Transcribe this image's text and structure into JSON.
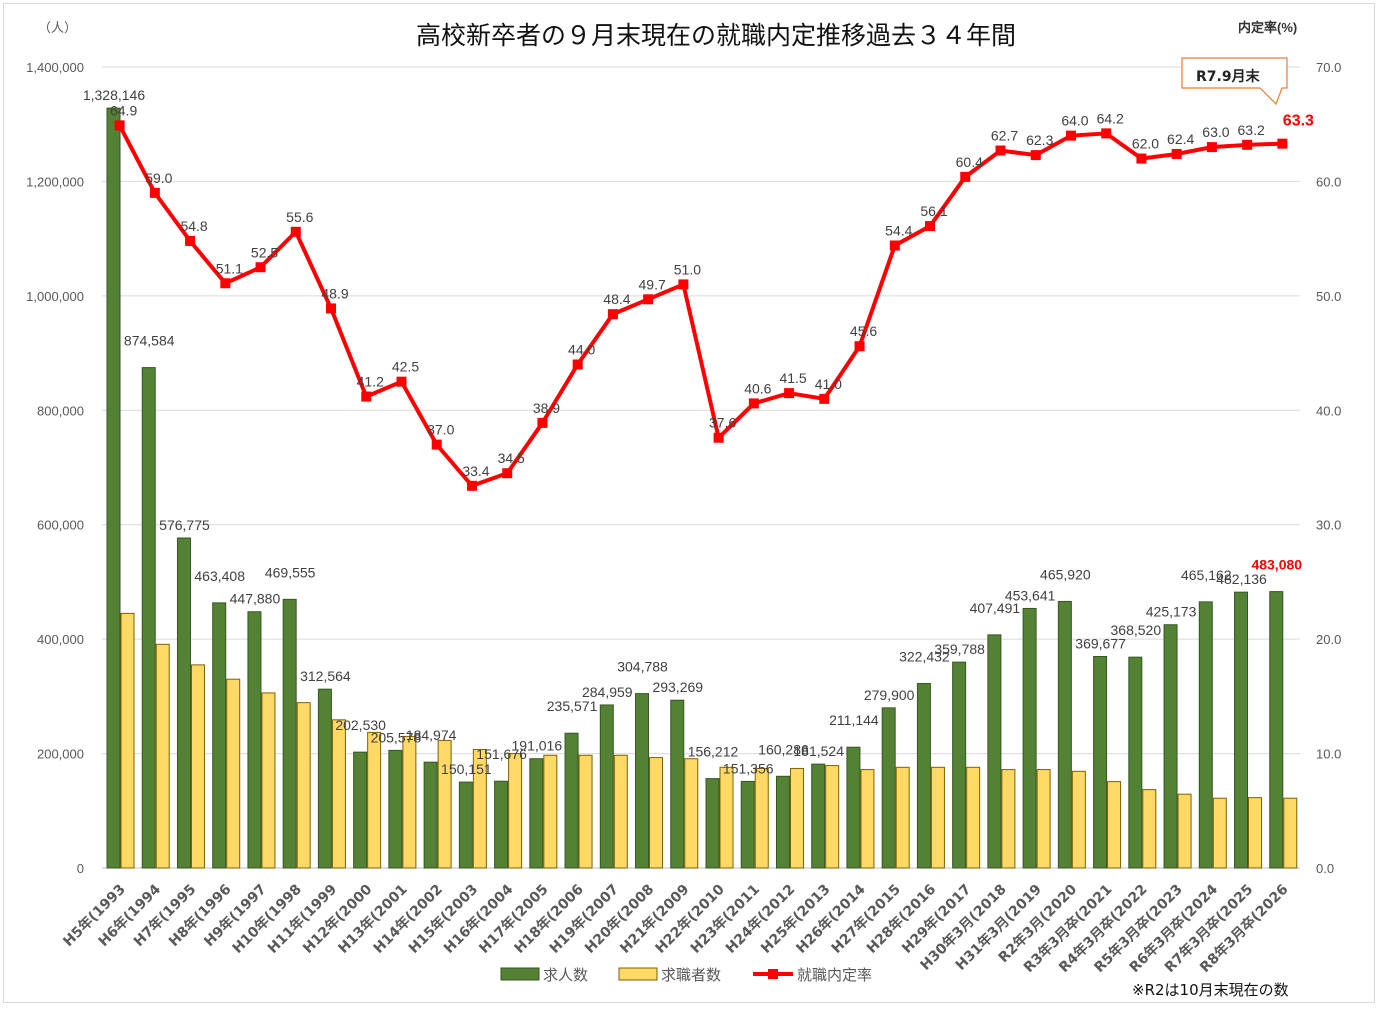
{
  "chart_data": {
    "type": "bar",
    "title": "高校新卒者の９月末現在の就職内定推移過去３４年間",
    "ylabel_left": "（人）",
    "ylabel_right": "内定率(%)",
    "ylim_left": [
      0,
      1400000
    ],
    "ylim_right": [
      0,
      70
    ],
    "left_ticks": [
      "0",
      "200,000",
      "400,000",
      "600,000",
      "800,000",
      "1,000,000",
      "1,200,000",
      "1,400,000"
    ],
    "right_ticks": [
      "0.0",
      "10.0",
      "20.0",
      "30.0",
      "40.0",
      "50.0",
      "60.0",
      "70.0"
    ],
    "grid": true,
    "legend_placement": "bottom",
    "categories": [
      "H5年(1993",
      "H6年(1994",
      "H7年(1995",
      "H8年(1996",
      "H9年(1997",
      "H10年(1998",
      "H11年(1999",
      "H12年(2000",
      "H13年(2001",
      "H14年(2002",
      "H15年(2003",
      "H16年(2004",
      "H17年(2005",
      "H18年(2006",
      "H19年(2007",
      "H20年(2008",
      "H21年(2009",
      "H22年(2010",
      "H23年(2011",
      "H24年(2012",
      "H25年(2013",
      "H26年(2014",
      "H27年(2015",
      "H28年(2016",
      "H29年(2017",
      "H30年3月(2018",
      "H31年3月(2019",
      "R2年3月(2020",
      "R3年3月卒(2021",
      "R4年3月卒(2022",
      "R5年3月卒(2023",
      "R6年3月卒(2024",
      "R7年3月卒(2025",
      "R8年3月卒(2026"
    ],
    "series": [
      {
        "name": "求人数",
        "type": "bar",
        "color": "#548235",
        "values": [
          1328146,
          874584,
          576775,
          463408,
          447880,
          469555,
          312564,
          202530,
          205578,
          184974,
          150151,
          151676,
          191016,
          235571,
          284959,
          304788,
          293269,
          156212,
          151356,
          160286,
          181524,
          211144,
          279900,
          322432,
          359788,
          407491,
          453641,
          465920,
          369677,
          368520,
          425173,
          465162,
          482136,
          483080
        ],
        "labels": [
          "1,328,146",
          "874,584",
          "576,775",
          "463,408",
          "447,880",
          "469,555",
          "312,564",
          "202,530",
          "205,578",
          "184,974",
          "150,151",
          "151,676",
          "191,016",
          "235,571",
          "284,959",
          "304,788",
          "293,269",
          "156,212",
          "151,356",
          "160,286",
          "181,524",
          "211,144",
          "279,900",
          "322,432",
          "359,788",
          "407,491",
          "453,641",
          "465,920",
          "369,677",
          "368,520",
          "425,173",
          "465,162",
          "482,136",
          "483,080"
        ]
      },
      {
        "name": "求職者数",
        "type": "bar",
        "color": "#ffd966",
        "values": [
          445000,
          391000,
          355000,
          330000,
          306000,
          289000,
          259000,
          237000,
          230000,
          223000,
          207000,
          200000,
          197000,
          197000,
          197000,
          193000,
          191000,
          176000,
          174000,
          174000,
          179000,
          172000,
          176000,
          176000,
          176000,
          172000,
          172000,
          169000,
          151000,
          137000,
          129000,
          122000,
          123000,
          122000
        ]
      },
      {
        "name": "就職内定率",
        "type": "line",
        "color": "#ff0000",
        "values": [
          64.9,
          59.0,
          54.8,
          51.1,
          52.5,
          55.6,
          48.9,
          41.2,
          42.5,
          37.0,
          33.4,
          34.5,
          38.9,
          44.0,
          48.4,
          49.7,
          51.0,
          37.6,
          40.6,
          41.5,
          41.0,
          45.6,
          54.4,
          56.1,
          60.4,
          62.7,
          62.3,
          64.0,
          64.2,
          62.0,
          62.4,
          63.0,
          63.2,
          63.3
        ],
        "labels": [
          "64.9",
          "59.0",
          "54.8",
          "51.1",
          "52.5",
          "55.6",
          "48.9",
          "41.2",
          "42.5",
          "37.0",
          "33.4",
          "34.5",
          "38.9",
          "44.0",
          "48.4",
          "49.7",
          "51.0",
          "37.6",
          "40.6",
          "41.5",
          "41.0",
          "45.6",
          "54.4",
          "56.1",
          "60.4",
          "62.7",
          "62.3",
          "64.0",
          "64.2",
          "62.0",
          "62.4",
          "63.0",
          "63.2",
          "63.3"
        ]
      }
    ],
    "highlight_color": "#ff0000",
    "callout": "R7.9月末",
    "note": "※R2は10月末現在の数"
  }
}
